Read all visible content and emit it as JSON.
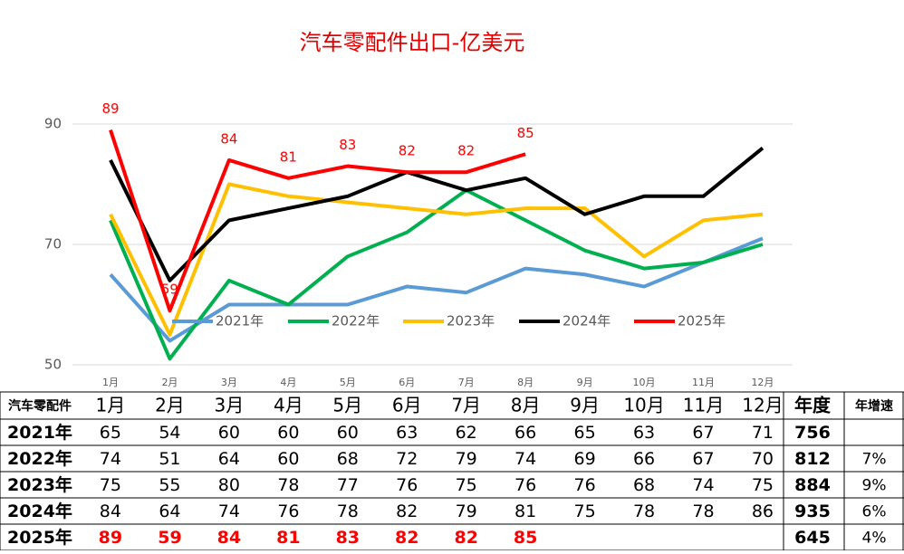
{
  "chart_data": {
    "type": "line",
    "title": "汽车零配件出口-亿美元",
    "categories": [
      "1月",
      "2月",
      "3月",
      "4月",
      "5月",
      "6月",
      "7月",
      "8月",
      "9月",
      "10月",
      "11月",
      "12月"
    ],
    "ylim": [
      50,
      90
    ],
    "yticks": [
      50,
      70,
      90
    ],
    "grid": true,
    "legend": "bottom",
    "series": [
      {
        "name": "2021年",
        "color": "#5b9bd5",
        "values": [
          65,
          54,
          60,
          60,
          60,
          63,
          62,
          66,
          65,
          63,
          67,
          71
        ]
      },
      {
        "name": "2022年",
        "color": "#00b050",
        "values": [
          74,
          51,
          64,
          60,
          68,
          72,
          79,
          74,
          69,
          66,
          67,
          70
        ]
      },
      {
        "name": "2023年",
        "color": "#ffc000",
        "values": [
          75,
          55,
          80,
          78,
          77,
          76,
          75,
          76,
          76,
          68,
          74,
          75
        ]
      },
      {
        "name": "2024年",
        "color": "#000000",
        "values": [
          84,
          64,
          74,
          76,
          78,
          82,
          79,
          81,
          75,
          78,
          78,
          86
        ]
      },
      {
        "name": "2025年",
        "color": "#ff0000",
        "values": [
          89,
          59,
          84,
          81,
          83,
          82,
          82,
          85,
          null,
          null,
          null,
          null
        ],
        "labels": true
      }
    ]
  },
  "table": {
    "header": [
      "汽车零配件",
      "1月",
      "2月",
      "3月",
      "4月",
      "5月",
      "6月",
      "7月",
      "8月",
      "9月",
      "10月",
      "11月",
      "12月",
      "年度",
      "年增速"
    ],
    "rows": [
      [
        "2021年",
        65,
        54,
        60,
        60,
        60,
        63,
        62,
        66,
        65,
        63,
        67,
        71,
        756,
        null
      ],
      [
        "2022年",
        74,
        51,
        64,
        60,
        68,
        72,
        79,
        74,
        69,
        66,
        67,
        70,
        812,
        "7%"
      ],
      [
        "2023年",
        75,
        55,
        80,
        78,
        77,
        76,
        75,
        76,
        76,
        68,
        74,
        75,
        884,
        "9%"
      ],
      [
        "2024年",
        84,
        64,
        74,
        76,
        78,
        82,
        79,
        81,
        75,
        78,
        78,
        86,
        935,
        "6%"
      ],
      [
        "2025年",
        89,
        59,
        84,
        81,
        83,
        82,
        82,
        85,
        null,
        null,
        null,
        null,
        645,
        "4%"
      ]
    ]
  }
}
